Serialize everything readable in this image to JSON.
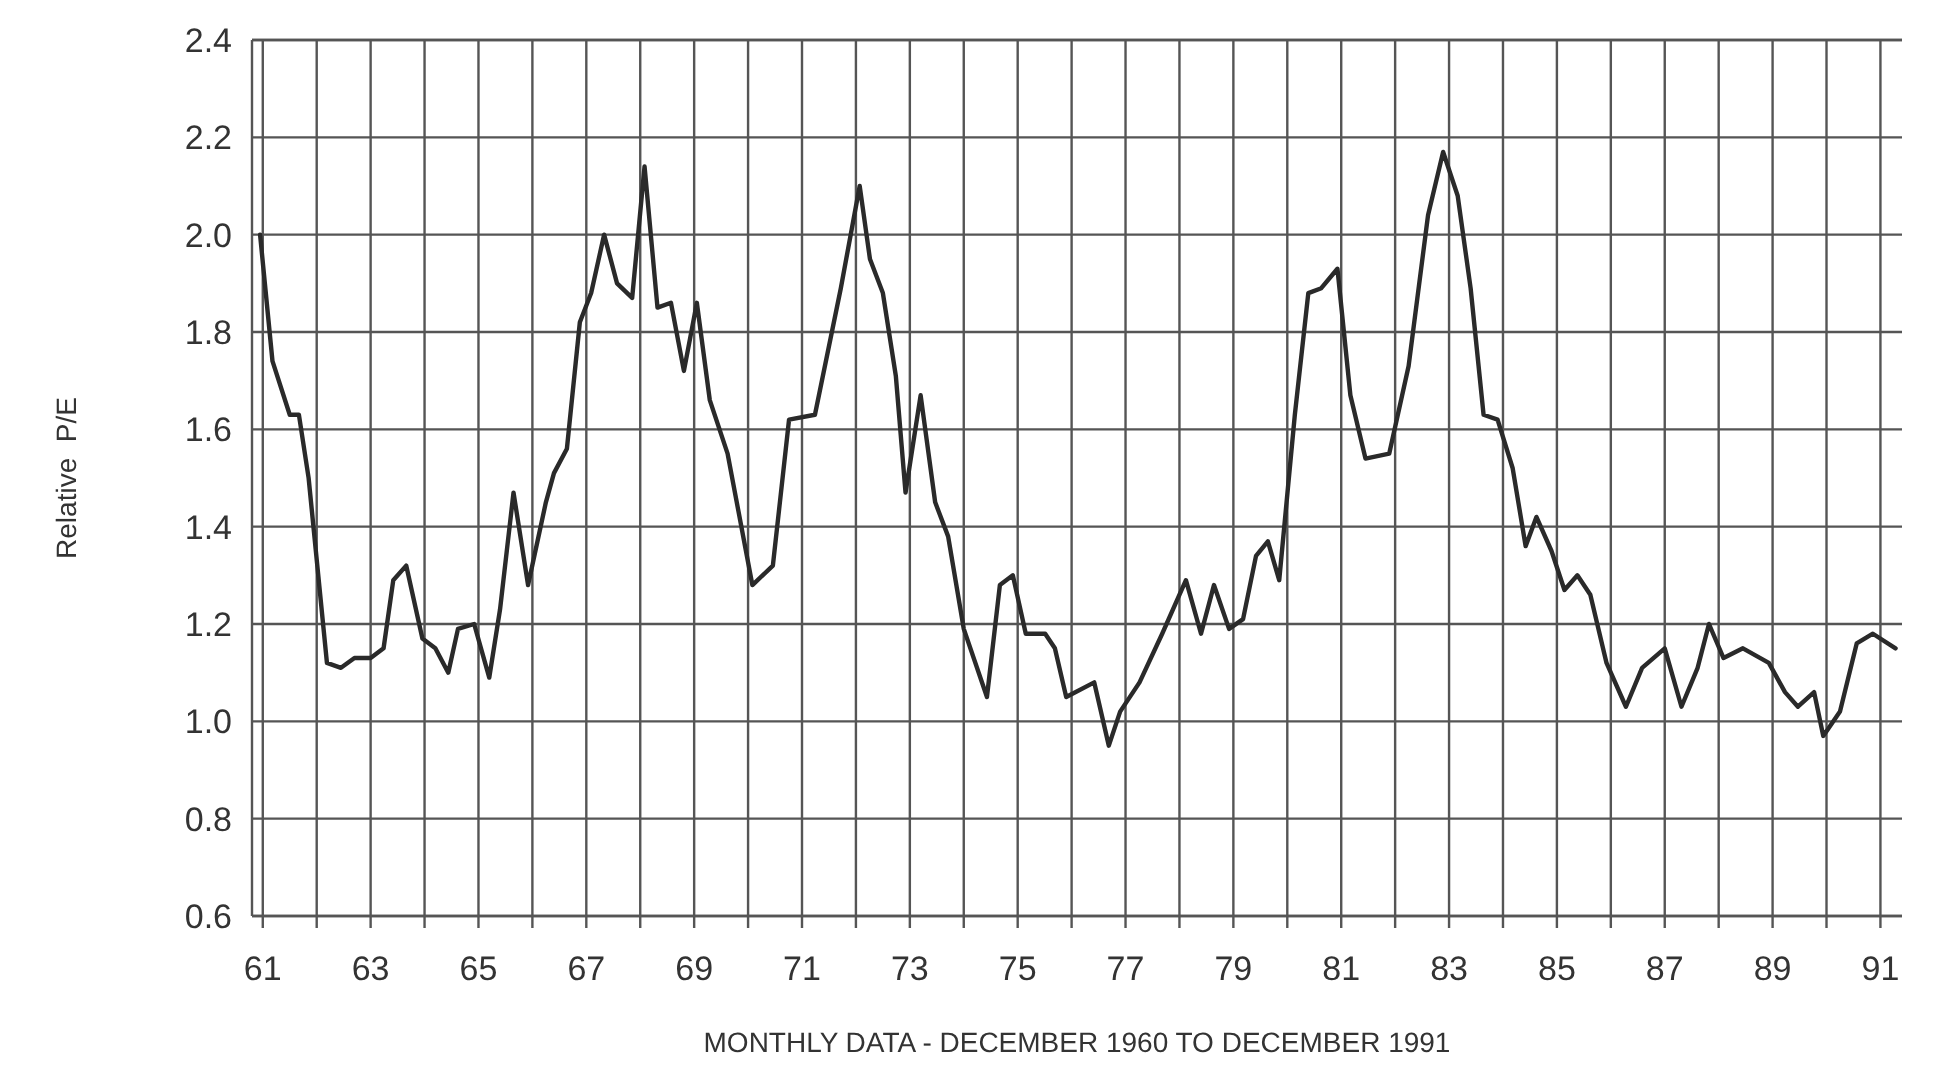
{
  "chart_data": {
    "type": "line",
    "xlabel": "MONTHLY DATA - DECEMBER 1960 TO DECEMBER 1991",
    "ylabel": "Relative  P/E",
    "x": [
      60.95,
      61.18,
      61.5,
      61.67,
      61.85,
      62.19,
      62.45,
      62.7,
      63.0,
      63.24,
      63.42,
      63.66,
      63.96,
      64.2,
      64.44,
      64.62,
      64.92,
      65.2,
      65.4,
      65.65,
      65.92,
      66.25,
      66.4,
      66.64,
      66.88,
      67.09,
      67.33,
      67.57,
      67.85,
      68.08,
      68.32,
      68.57,
      68.81,
      69.05,
      69.29,
      69.62,
      70.08,
      70.46,
      70.76,
      71.24,
      71.72,
      72.07,
      72.26,
      72.5,
      72.74,
      72.92,
      73.2,
      73.47,
      73.71,
      74.0,
      74.43,
      74.67,
      74.91,
      75.15,
      75.51,
      75.69,
      75.9,
      76.42,
      76.69,
      76.9,
      77.26,
      77.68,
      78.12,
      78.4,
      78.64,
      78.92,
      79.18,
      79.42,
      79.64,
      79.85,
      80.14,
      80.39,
      80.63,
      80.93,
      81.17,
      81.45,
      81.89,
      82.25,
      82.61,
      82.89,
      83.16,
      83.4,
      83.64,
      83.9,
      84.18,
      84.42,
      84.62,
      84.9,
      85.14,
      85.38,
      85.62,
      85.92,
      86.28,
      86.58,
      87.0,
      87.31,
      87.61,
      87.82,
      88.09,
      88.45,
      88.93,
      89.23,
      89.47,
      89.77,
      89.94,
      90.25,
      90.56,
      90.86,
      91.28
    ],
    "series": [
      {
        "color": "#2a2a2a",
        "values": [
          2.0,
          1.74,
          1.63,
          1.63,
          1.5,
          1.12,
          1.11,
          1.13,
          1.13,
          1.15,
          1.29,
          1.32,
          1.17,
          1.15,
          1.1,
          1.19,
          1.2,
          1.09,
          1.23,
          1.47,
          1.28,
          1.45,
          1.51,
          1.56,
          1.82,
          1.88,
          2.0,
          1.9,
          1.87,
          2.14,
          1.85,
          1.86,
          1.72,
          1.86,
          1.66,
          1.55,
          1.28,
          1.32,
          1.62,
          1.63,
          1.89,
          2.1,
          1.95,
          1.88,
          1.71,
          1.47,
          1.67,
          1.45,
          1.38,
          1.19,
          1.05,
          1.28,
          1.3,
          1.18,
          1.18,
          1.15,
          1.05,
          1.08,
          0.95,
          1.02,
          1.08,
          1.18,
          1.29,
          1.18,
          1.28,
          1.19,
          1.21,
          1.34,
          1.37,
          1.29,
          1.63,
          1.88,
          1.89,
          1.93,
          1.67,
          1.54,
          1.55,
          1.73,
          2.04,
          2.17,
          2.08,
          1.89,
          1.63,
          1.62,
          1.52,
          1.36,
          1.42,
          1.35,
          1.27,
          1.3,
          1.26,
          1.12,
          1.03,
          1.11,
          1.15,
          1.03,
          1.11,
          1.2,
          1.13,
          1.15,
          1.12,
          1.06,
          1.03,
          1.06,
          0.97,
          1.02,
          1.16,
          1.18,
          1.15
        ]
      }
    ],
    "xlim": [
      60.8,
      91.4
    ],
    "xticks": [
      61,
      {
        "value": 62,
        "label": null
      },
      63,
      {
        "value": 64,
        "label": null
      },
      65,
      {
        "value": 66,
        "label": null
      },
      67,
      {
        "value": 68,
        "label": null
      },
      69,
      {
        "value": 70,
        "label": null
      },
      71,
      {
        "value": 72,
        "label": null
      },
      73,
      {
        "value": 74,
        "label": null
      },
      75,
      {
        "value": 76,
        "label": null
      },
      77,
      {
        "value": 78,
        "label": null
      },
      79,
      {
        "value": 80,
        "label": null
      },
      81,
      {
        "value": 82,
        "label": null
      },
      83,
      {
        "value": 84,
        "label": null
      },
      85,
      {
        "value": 86,
        "label": null
      },
      87,
      {
        "value": 88,
        "label": null
      },
      89,
      {
        "value": 90,
        "label": null
      },
      91
    ],
    "ylim": [
      0.6,
      2.4
    ],
    "yticks": [
      0.6,
      0.8,
      {
        "value": 1,
        "label": "1.0"
      },
      1.2,
      1.4,
      1.6,
      1.8,
      {
        "value": 2,
        "label": "2.0"
      },
      2.2,
      2.4
    ],
    "grid": true,
    "marker": "none",
    "line_style": "solid"
  }
}
